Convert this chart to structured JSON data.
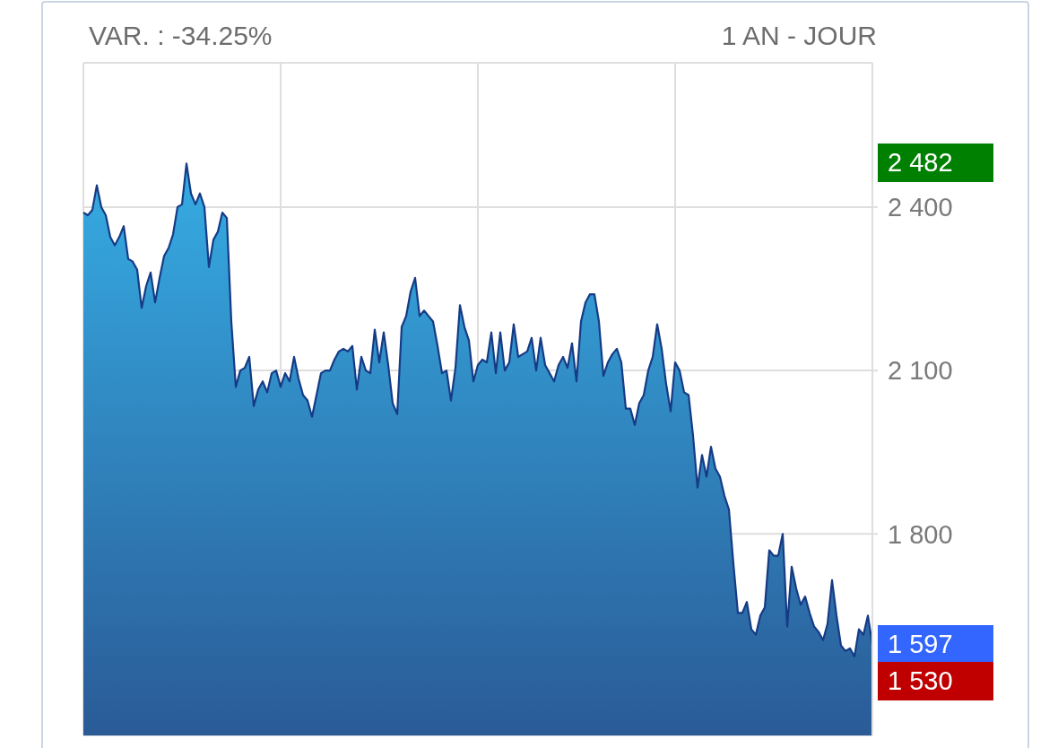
{
  "chart_data": {
    "type": "area",
    "title": "VAR. : -34.25%",
    "subtitle": "1 AN - JOUR",
    "categories": [
      null,
      null,
      null,
      null,
      null,
      null,
      null,
      null,
      null,
      null,
      null,
      null,
      null,
      null,
      null,
      null,
      null,
      null,
      null,
      null,
      null,
      null,
      null,
      null,
      null,
      null,
      null,
      null,
      null,
      null,
      null,
      null,
      null,
      null,
      null,
      null,
      null,
      null,
      null,
      null,
      null,
      null,
      null,
      null,
      null,
      null,
      null,
      null,
      null,
      null,
      null,
      null,
      null,
      null,
      null,
      null,
      null,
      null,
      null,
      null,
      null,
      null,
      null,
      null,
      null,
      null,
      null,
      null,
      null,
      null,
      null,
      null,
      null,
      null,
      null,
      null,
      null,
      null,
      null,
      null,
      null,
      null,
      null,
      null,
      null,
      null,
      null,
      null,
      null,
      null,
      null,
      null,
      null,
      null,
      null,
      null,
      null,
      null,
      null,
      null,
      null,
      null,
      null,
      null,
      null,
      null,
      null,
      null,
      null,
      null,
      null,
      null,
      null,
      null,
      null,
      null,
      null,
      null,
      null,
      null,
      null,
      null,
      null,
      null,
      null,
      null,
      null,
      null,
      null,
      null,
      null,
      null,
      null,
      null,
      null,
      null,
      null,
      null,
      null,
      null,
      null,
      null,
      null,
      null,
      null,
      null,
      null,
      null,
      null,
      null,
      null,
      null,
      null,
      null,
      null,
      null,
      null,
      null,
      null,
      null,
      null,
      null,
      null,
      null,
      null,
      null,
      null,
      null,
      null,
      null,
      null,
      null,
      null,
      null,
      null,
      null,
      null
    ],
    "series": [
      {
        "color": "#36ace3",
        "values": [
          2390,
          2385,
          2395,
          2440,
          2400,
          2385,
          2345,
          2330,
          2345,
          2365,
          2305,
          2300,
          2285,
          2215,
          2255,
          2280,
          2225,
          2270,
          2310,
          2325,
          2350,
          2400,
          2405,
          2480,
          2425,
          2405,
          2425,
          2400,
          2290,
          2340,
          2355,
          2390,
          2380,
          2190,
          2070,
          2100,
          2105,
          2125,
          2035,
          2065,
          2080,
          2060,
          2095,
          2100,
          2070,
          2095,
          2080,
          2125,
          2085,
          2055,
          2045,
          2015,
          2055,
          2095,
          2100,
          2100,
          2120,
          2135,
          2140,
          2135,
          2145,
          2065,
          2125,
          2100,
          2095,
          2175,
          2115,
          2170,
          2110,
          2040,
          2020,
          2180,
          2200,
          2245,
          2270,
          2200,
          2210,
          2200,
          2190,
          2145,
          2095,
          2100,
          2045,
          2105,
          2220,
          2180,
          2155,
          2080,
          2110,
          2120,
          2115,
          2170,
          2095,
          2170,
          2100,
          2115,
          2185,
          2125,
          2130,
          2135,
          2160,
          2100,
          2160,
          2110,
          2095,
          2080,
          2110,
          2125,
          2105,
          2150,
          2080,
          2190,
          2225,
          2240,
          2240,
          2190,
          2090,
          2115,
          2130,
          2140,
          2115,
          2030,
          2030,
          2000,
          2040,
          2055,
          2100,
          2125,
          2185,
          2140,
          2075,
          2025,
          2115,
          2100,
          2060,
          2055,
          1980,
          1885,
          1945,
          1905,
          1960,
          1920,
          1905,
          1870,
          1845,
          1745,
          1655,
          1655,
          1675,
          1625,
          1615,
          1650,
          1665,
          1770,
          1760,
          1760,
          1800,
          1630,
          1740,
          1700,
          1670,
          1685,
          1655,
          1630,
          1620,
          1605,
          1635,
          1715,
          1650,
          1595,
          1585,
          1590,
          1575,
          1625,
          1615,
          1650,
          1597
        ]
      }
    ],
    "ylim": [
      1430,
      2665
    ],
    "yticks": [
      {
        "value": 1800,
        "label": "1 800"
      },
      {
        "value": 2100,
        "label": "2 100"
      },
      {
        "value": 2400,
        "label": "2 400"
      }
    ],
    "y2lim": [
      1430,
      2665
    ],
    "y2ticks": [
      {
        "value": 2482,
        "label": "2 482"
      },
      {
        "value": 1597,
        "label": "1 597"
      },
      {
        "value": 1530,
        "label": "1 530"
      }
    ],
    "grid": true,
    "tick_labels": "y"
  }
}
